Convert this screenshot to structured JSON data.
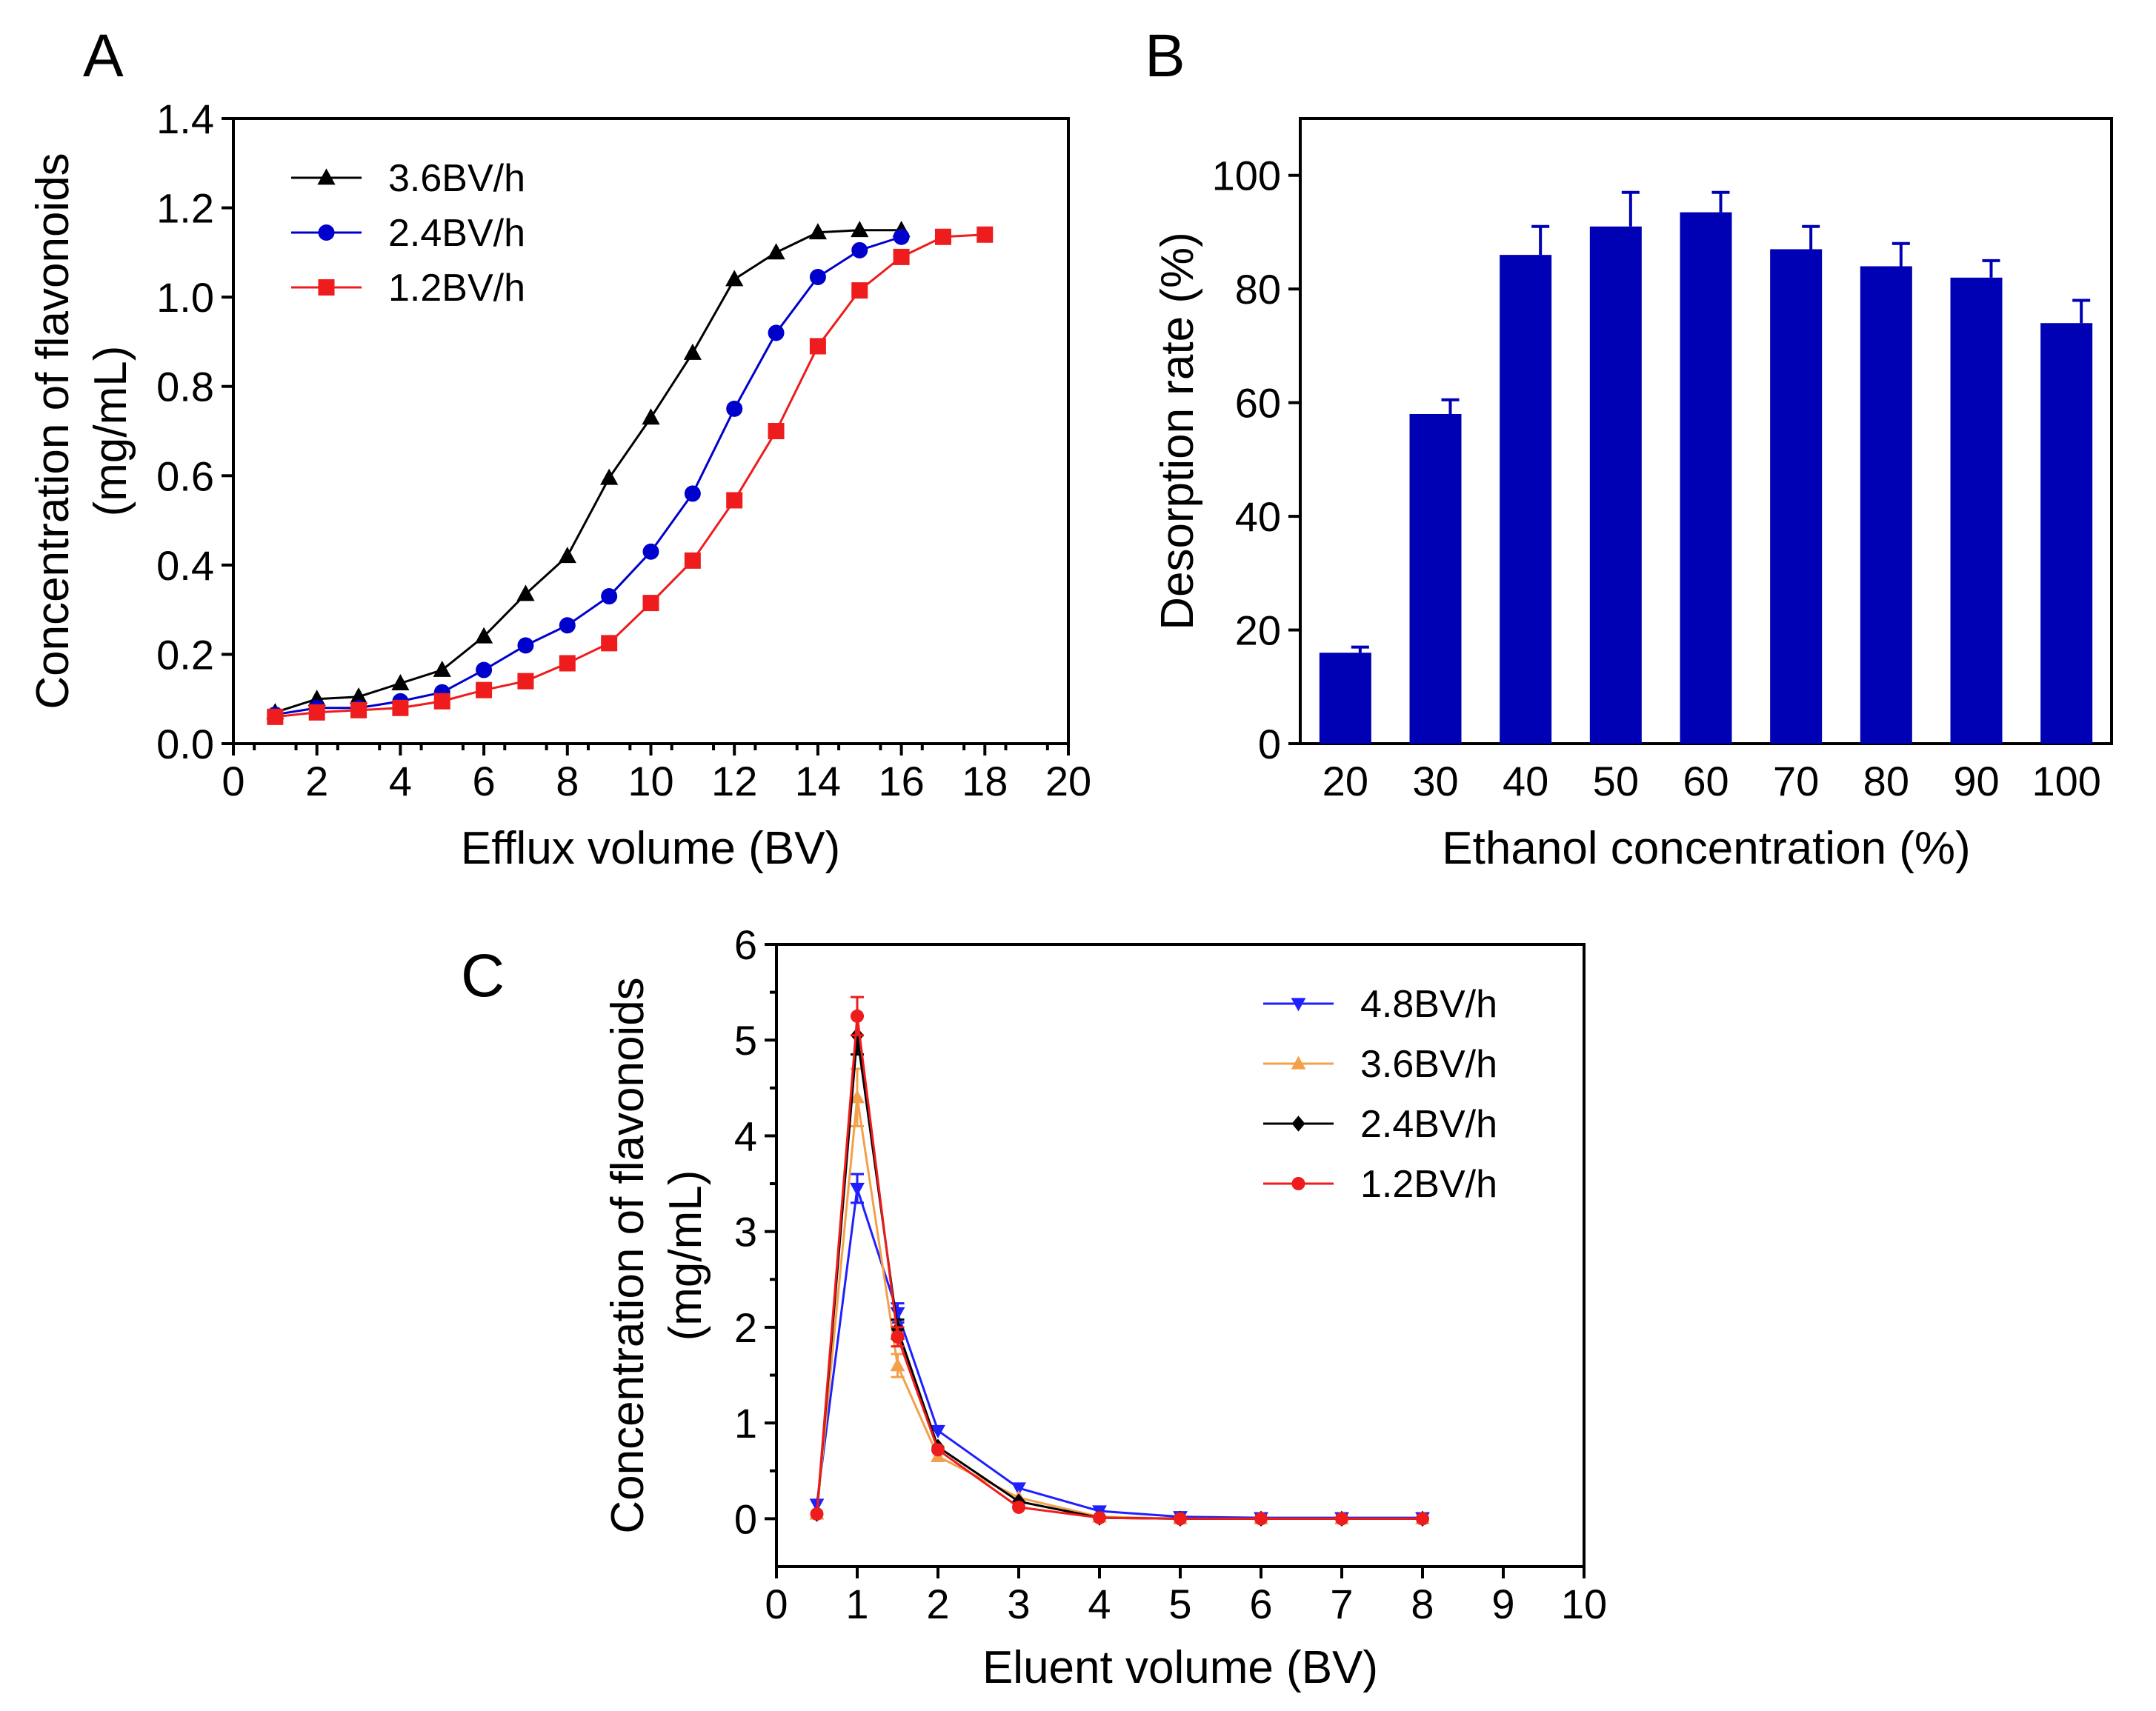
{
  "chart_data": [
    {
      "panel": "A",
      "type": "line",
      "title": "",
      "xlabel": "Efflux volume (BV)",
      "ylabel": [
        "Concentration of flavonoids",
        "(mg/mL)"
      ],
      "xlim": [
        0,
        20
      ],
      "ylim": [
        0,
        1.4
      ],
      "xticks": [
        "0",
        "2",
        "4",
        "6",
        "8",
        "10",
        "12",
        "14",
        "16",
        "18",
        "20"
      ],
      "yticks": [
        "0.0",
        "0.2",
        "0.4",
        "0.6",
        "0.8",
        "1.0",
        "1.2",
        "1.4"
      ],
      "legend_position": "top-left",
      "series": [
        {
          "name": "3.6BV/h",
          "color": "#000000",
          "marker": "triangle",
          "x": [
            1,
            2,
            3,
            4,
            5,
            6,
            7,
            8,
            9,
            10,
            11,
            12,
            13,
            14,
            15,
            16
          ],
          "y": [
            0.07,
            0.1,
            0.105,
            0.135,
            0.165,
            0.24,
            0.335,
            0.42,
            0.595,
            0.73,
            0.875,
            1.04,
            1.1,
            1.145,
            1.15,
            1.15
          ]
        },
        {
          "name": "2.4BV/h",
          "color": "#0000cc",
          "marker": "circle",
          "x": [
            1,
            2,
            3,
            4,
            5,
            6,
            7,
            8,
            9,
            10,
            11,
            12,
            13,
            14,
            15,
            16
          ],
          "y": [
            0.065,
            0.08,
            0.08,
            0.095,
            0.115,
            0.165,
            0.22,
            0.265,
            0.33,
            0.43,
            0.56,
            0.75,
            0.92,
            1.045,
            1.105,
            1.135
          ]
        },
        {
          "name": "1.2BV/h",
          "color": "#ee1c1c",
          "marker": "square",
          "x": [
            1,
            2,
            3,
            4,
            5,
            6,
            7,
            8,
            9,
            10,
            11,
            12,
            13,
            14,
            15,
            16,
            17,
            18
          ],
          "y": [
            0.06,
            0.07,
            0.075,
            0.08,
            0.095,
            0.12,
            0.14,
            0.18,
            0.225,
            0.315,
            0.41,
            0.545,
            0.7,
            0.89,
            1.015,
            1.09,
            1.135,
            1.14
          ]
        }
      ]
    },
    {
      "panel": "B",
      "type": "bar",
      "title": "",
      "xlabel": "Ethanol concentration (%)",
      "ylabel": "Desorption rate (%)",
      "ylim": [
        0,
        110
      ],
      "yticks": [
        "0",
        "20",
        "40",
        "60",
        "80",
        "100"
      ],
      "categories": [
        "20",
        "30",
        "40",
        "50",
        "60",
        "70",
        "80",
        "90",
        "100"
      ],
      "values": [
        16,
        58,
        86,
        91,
        93.5,
        87,
        84,
        82,
        74
      ],
      "errors": [
        1,
        2.5,
        5,
        6,
        3.5,
        4,
        4,
        3,
        4
      ],
      "color": "#0000b4"
    },
    {
      "panel": "C",
      "type": "line",
      "title": "",
      "xlabel": "Eluent volume (BV)",
      "ylabel": [
        "Concentration of flavonoids",
        "(mg/mL)"
      ],
      "xlim": [
        0,
        10
      ],
      "ylim": [
        -0.5,
        6
      ],
      "xticks": [
        "0",
        "1",
        "2",
        "3",
        "4",
        "5",
        "6",
        "7",
        "8",
        "9",
        "10"
      ],
      "yticks": [
        "0",
        "1",
        "2",
        "3",
        "4",
        "5",
        "6"
      ],
      "legend_position": "top-right",
      "series": [
        {
          "name": "4.8BV/h",
          "color": "#1f1fff",
          "marker": "triangle-down",
          "x": [
            0.5,
            1,
            1.5,
            2,
            3,
            4,
            5,
            6,
            7,
            8
          ],
          "y": [
            0.15,
            3.45,
            2.15,
            0.92,
            0.32,
            0.08,
            0.02,
            0.01,
            0.01,
            0.01
          ],
          "err": [
            0,
            0.15,
            0.1,
            0,
            0,
            0,
            0,
            0,
            0,
            0
          ]
        },
        {
          "name": "3.6BV/h",
          "color": "#f4a04a",
          "marker": "triangle",
          "x": [
            0.5,
            1,
            1.5,
            2,
            3,
            4,
            5,
            6,
            7,
            8
          ],
          "y": [
            0.05,
            4.4,
            1.6,
            0.65,
            0.22,
            0.02,
            0.0,
            0.0,
            0.0,
            0.0
          ],
          "err": [
            0,
            0.3,
            0.12,
            0,
            0,
            0,
            0,
            0,
            0,
            0
          ]
        },
        {
          "name": "2.4BV/h",
          "color": "#000000",
          "marker": "diamond",
          "x": [
            0.5,
            1,
            1.5,
            2,
            3,
            4,
            5,
            6,
            7,
            8
          ],
          "y": [
            0.05,
            5.05,
            1.98,
            0.75,
            0.18,
            0.01,
            0.0,
            0.0,
            0.0,
            0.0
          ],
          "err": [
            0,
            0.2,
            0.1,
            0,
            0,
            0,
            0,
            0,
            0,
            0
          ]
        },
        {
          "name": "1.2BV/h",
          "color": "#ee1c1c",
          "marker": "circle",
          "x": [
            0.5,
            1,
            1.5,
            2,
            3,
            4,
            5,
            6,
            7,
            8
          ],
          "y": [
            0.05,
            5.25,
            1.9,
            0.72,
            0.12,
            0.01,
            0.0,
            0.0,
            0.0,
            0.0
          ],
          "err": [
            0,
            0.2,
            0.1,
            0,
            0,
            0,
            0,
            0,
            0,
            0
          ]
        }
      ]
    }
  ]
}
